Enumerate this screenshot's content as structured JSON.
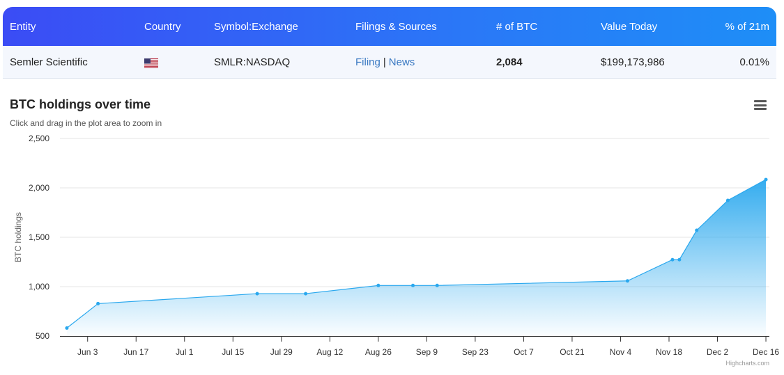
{
  "table": {
    "headers": {
      "entity": "Entity",
      "country": "Country",
      "symbol": "Symbol:Exchange",
      "filings": "Filings & Sources",
      "btc": "# of BTC",
      "value": "Value Today",
      "pct": "% of 21m"
    },
    "row": {
      "entity": "Semler Scientific",
      "country_icon": "us-flag-icon",
      "symbol": "SMLR:NASDAQ",
      "filing_link": "Filing",
      "separator": "|",
      "news_link": "News",
      "btc": "2,084",
      "value": "$199,173,986",
      "pct": "0.01%"
    }
  },
  "chart": {
    "title": "BTC holdings over time",
    "subtitle": "Click and drag in the plot area to zoom in",
    "menu_icon": "hamburger-menu-icon",
    "credits": "Highcharts.com"
  },
  "chart_data": {
    "type": "area",
    "title": "BTC holdings over time",
    "ylabel": "BTC holdings",
    "xlabel": "",
    "ylim": [
      500,
      2500
    ],
    "yticks": [
      "500",
      "1,000",
      "1,500",
      "2,000",
      "2,500"
    ],
    "yticks_values": [
      500,
      1000,
      1500,
      2000,
      2500
    ],
    "xticks": [
      "Jun 3",
      "Jun 17",
      "Jul 1",
      "Jul 15",
      "Jul 29",
      "Aug 12",
      "Aug 26",
      "Sep 9",
      "Sep 23",
      "Oct 7",
      "Oct 21",
      "Nov 4",
      "Nov 18",
      "Dec 2",
      "Dec 16"
    ],
    "xtick_dates": [
      "2024-06-03",
      "2024-06-17",
      "2024-07-01",
      "2024-07-15",
      "2024-07-29",
      "2024-08-12",
      "2024-08-26",
      "2024-09-09",
      "2024-09-23",
      "2024-10-07",
      "2024-10-21",
      "2024-11-04",
      "2024-11-18",
      "2024-12-02",
      "2024-12-16"
    ],
    "grid": true,
    "legend": "none",
    "color": "#2aa8ee",
    "series": [
      {
        "points": [
          {
            "date": "2024-05-28",
            "y": 581
          },
          {
            "date": "2024-06-06",
            "y": 828
          },
          {
            "date": "2024-07-22",
            "y": 929
          },
          {
            "date": "2024-08-05",
            "y": 929
          },
          {
            "date": "2024-08-26",
            "y": 1012
          },
          {
            "date": "2024-09-05",
            "y": 1012
          },
          {
            "date": "2024-09-12",
            "y": 1012
          },
          {
            "date": "2024-11-06",
            "y": 1058
          },
          {
            "date": "2024-11-19",
            "y": 1273
          },
          {
            "date": "2024-11-21",
            "y": 1273
          },
          {
            "date": "2024-11-26",
            "y": 1570
          },
          {
            "date": "2024-12-05",
            "y": 1873
          },
          {
            "date": "2024-12-16",
            "y": 2084
          }
        ]
      }
    ]
  }
}
